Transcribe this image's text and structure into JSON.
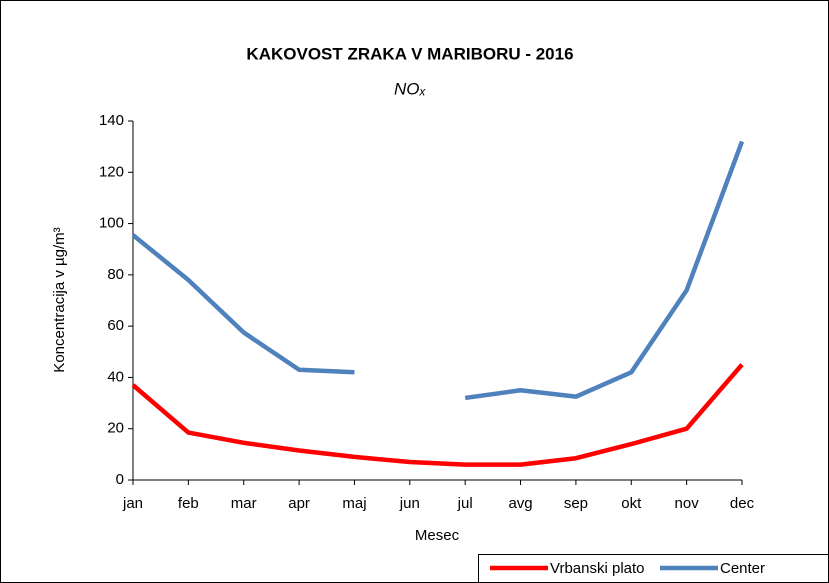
{
  "chart_data": {
    "type": "line",
    "title": "KAKOVOST ZRAKA V MARIBORU - 2016",
    "subtitle": "NOₓ",
    "ylabel": "Koncentracija v µg/m³",
    "xlabel": "Mesec",
    "categories": [
      "jan",
      "feb",
      "mar",
      "apr",
      "maj",
      "jun",
      "jul",
      "avg",
      "sep",
      "okt",
      "nov",
      "dec"
    ],
    "series": [
      {
        "name": "Vrbanski plato",
        "color": "#ff0000",
        "values": [
          37,
          18.5,
          14.5,
          11.5,
          9,
          7,
          6,
          6,
          8.5,
          14,
          20,
          45
        ]
      },
      {
        "name": "Center",
        "color": "#4f81bd",
        "values": [
          95.5,
          78,
          57.5,
          43,
          42,
          null,
          32,
          35,
          32.5,
          42,
          74,
          132
        ]
      }
    ],
    "ylim": [
      0,
      140
    ],
    "yticks": [
      0,
      20,
      40,
      60,
      80,
      100,
      120,
      140
    ],
    "grid": false,
    "legend": "bottom-right"
  }
}
